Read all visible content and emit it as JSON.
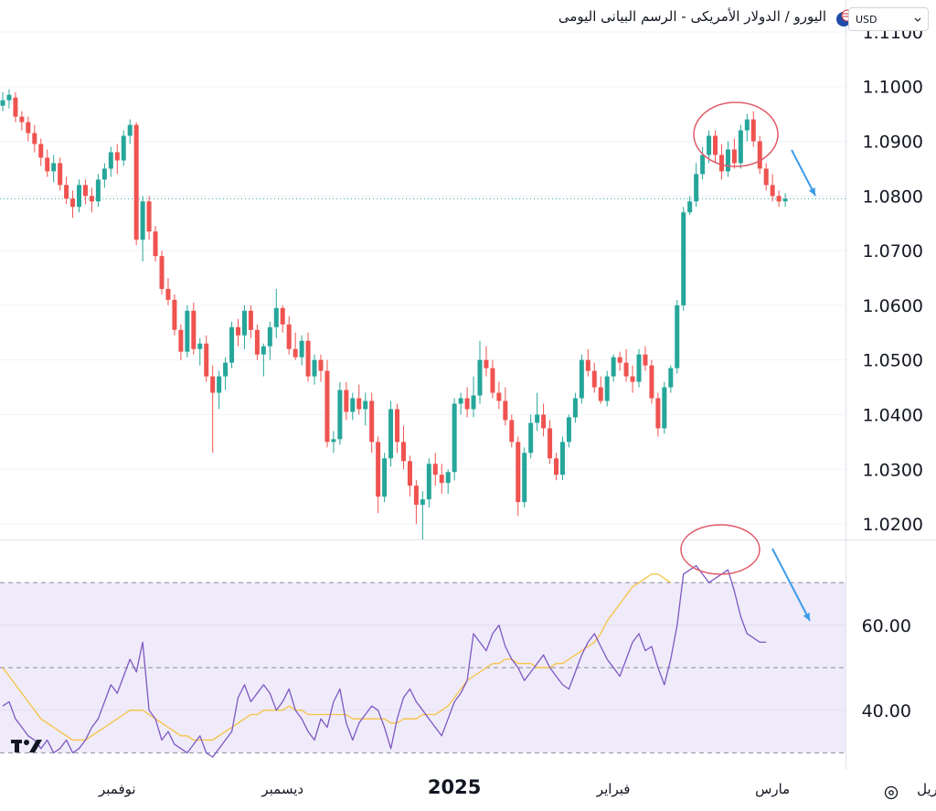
{
  "title": "اليورو / الدولار الأمريكى - الرسم البيانى اليومى",
  "currency": {
    "selected": "USD"
  },
  "icons": {
    "flag": "eur-usd-flag-icon",
    "dropdown": "chevron-down-icon",
    "logo": "tradingview-logo-icon",
    "settings": "settings-icon"
  },
  "colors": {
    "up": "#26a69a",
    "down": "#ef5350",
    "rsi": "#7e57c2",
    "rsi_ma": "#f6c343",
    "annotation": "#e05a6a",
    "arrow": "#3d9be9"
  },
  "chart_data": [
    {
      "type": "candlestick",
      "name": "EUR/USD",
      "timeframe": "daily",
      "y_ticks": [
        "1.1100",
        "1.1000",
        "1.0900",
        "1.0800",
        "1.0700",
        "1.0600",
        "1.0500",
        "1.0400",
        "1.0300",
        "1.0200"
      ],
      "ylim": [
        1.0175,
        1.1125
      ],
      "last_price": 1.0795,
      "x_ticks": [
        "نوفمبر",
        "ديسمبر",
        "2025",
        "فبراير",
        "مارس",
        "أبريل"
      ],
      "x_tick_index": [
        18,
        44,
        71,
        96,
        121,
        146
      ],
      "candles": [
        [
          1.0965,
          1.099,
          1.0955,
          1.0975
        ],
        [
          1.0975,
          1.0995,
          1.096,
          1.0985
        ],
        [
          1.098,
          1.099,
          1.0935,
          1.0945
        ],
        [
          1.0945,
          1.0955,
          1.092,
          1.0935
        ],
        [
          1.0935,
          1.0945,
          1.09,
          1.0915
        ],
        [
          1.0915,
          1.093,
          1.088,
          1.0895
        ],
        [
          1.0895,
          1.0905,
          1.0855,
          1.087
        ],
        [
          1.087,
          1.0885,
          1.0835,
          1.0845
        ],
        [
          1.0845,
          1.0875,
          1.0825,
          1.086
        ],
        [
          1.086,
          1.087,
          1.081,
          1.082
        ],
        [
          1.082,
          1.0835,
          1.0785,
          1.0795
        ],
        [
          1.0795,
          1.081,
          1.076,
          1.078
        ],
        [
          1.078,
          1.083,
          1.077,
          1.082
        ],
        [
          1.082,
          1.083,
          1.0785,
          1.08
        ],
        [
          1.08,
          1.0815,
          1.077,
          1.079
        ],
        [
          1.079,
          1.084,
          1.078,
          1.083
        ],
        [
          1.083,
          1.086,
          1.0815,
          1.085
        ],
        [
          1.085,
          1.089,
          1.0835,
          1.088
        ],
        [
          1.088,
          1.0895,
          1.084,
          1.0865
        ],
        [
          1.0865,
          1.092,
          1.0855,
          1.091
        ],
        [
          1.091,
          1.094,
          1.0895,
          1.093
        ],
        [
          1.093,
          1.0935,
          1.071,
          1.072
        ],
        [
          1.072,
          1.08,
          1.068,
          1.079
        ],
        [
          1.079,
          1.08,
          1.072,
          1.0735
        ],
        [
          1.0735,
          1.0745,
          1.068,
          1.069
        ],
        [
          1.069,
          1.07,
          1.062,
          1.063
        ],
        [
          1.063,
          1.065,
          1.06,
          1.061
        ],
        [
          1.061,
          1.062,
          1.0545,
          1.0555
        ],
        [
          1.0555,
          1.0565,
          1.05,
          1.0515
        ],
        [
          1.0515,
          1.06,
          1.0505,
          1.059
        ],
        [
          1.059,
          1.0605,
          1.051,
          1.052
        ],
        [
          1.052,
          1.054,
          1.049,
          1.053
        ],
        [
          1.053,
          1.0545,
          1.046,
          1.047
        ],
        [
          1.047,
          1.049,
          1.033,
          1.044
        ],
        [
          1.044,
          1.048,
          1.041,
          1.047
        ],
        [
          1.047,
          1.0505,
          1.0445,
          1.0495
        ],
        [
          1.0495,
          1.057,
          1.0485,
          1.056
        ],
        [
          1.056,
          1.0575,
          1.0525,
          1.0545
        ],
        [
          1.0545,
          1.06,
          1.052,
          1.059
        ],
        [
          1.059,
          1.06,
          1.054,
          1.0555
        ],
        [
          1.0555,
          1.0565,
          1.05,
          1.051
        ],
        [
          1.051,
          1.053,
          1.047,
          1.0525
        ],
        [
          1.0525,
          1.057,
          1.05,
          1.056
        ],
        [
          1.056,
          1.063,
          1.054,
          1.0595
        ],
        [
          1.0595,
          1.06,
          1.055,
          1.0565
        ],
        [
          1.0565,
          1.058,
          1.051,
          1.052
        ],
        [
          1.052,
          1.055,
          1.05,
          1.0505
        ],
        [
          1.0505,
          1.0545,
          1.049,
          1.0535
        ],
        [
          1.0535,
          1.055,
          1.046,
          1.047
        ],
        [
          1.047,
          1.051,
          1.0455,
          1.05
        ],
        [
          1.05,
          1.051,
          1.046,
          1.048
        ],
        [
          1.048,
          1.05,
          1.034,
          1.035
        ],
        [
          1.035,
          1.037,
          1.033,
          1.0355
        ],
        [
          1.0355,
          1.046,
          1.0345,
          1.0445
        ],
        [
          1.0445,
          1.046,
          1.039,
          1.0405
        ],
        [
          1.0405,
          1.044,
          1.039,
          1.043
        ],
        [
          1.043,
          1.0455,
          1.04,
          1.041
        ],
        [
          1.041,
          1.044,
          1.038,
          1.0425
        ],
        [
          1.0425,
          1.044,
          1.033,
          1.035
        ],
        [
          1.035,
          1.036,
          1.022,
          1.025
        ],
        [
          1.025,
          1.033,
          1.024,
          1.032
        ],
        [
          1.032,
          1.0425,
          1.0305,
          1.041
        ],
        [
          1.041,
          1.042,
          1.033,
          1.035
        ],
        [
          1.035,
          1.038,
          1.03,
          1.0315
        ],
        [
          1.0315,
          1.0325,
          1.025,
          1.027
        ],
        [
          1.027,
          1.028,
          1.02,
          1.0235
        ],
        [
          1.0235,
          1.026,
          1.017,
          1.0245
        ],
        [
          1.0245,
          1.032,
          1.023,
          1.031
        ],
        [
          1.031,
          1.033,
          1.027,
          1.029
        ],
        [
          1.029,
          1.031,
          1.0255,
          1.0275
        ],
        [
          1.0275,
          1.03,
          1.0255,
          1.0295
        ],
        [
          1.0295,
          1.043,
          1.028,
          1.042
        ],
        [
          1.042,
          1.044,
          1.04,
          1.043
        ],
        [
          1.043,
          1.045,
          1.0395,
          1.041
        ],
        [
          1.041,
          1.047,
          1.0395,
          1.0435
        ],
        [
          1.0435,
          1.0535,
          1.042,
          1.05
        ],
        [
          1.05,
          1.0525,
          1.047,
          1.0485
        ],
        [
          1.0485,
          1.05,
          1.043,
          1.044
        ],
        [
          1.044,
          1.046,
          1.041,
          1.0425
        ],
        [
          1.0425,
          1.045,
          1.038,
          1.039
        ],
        [
          1.039,
          1.04,
          1.034,
          1.035
        ],
        [
          1.035,
          1.036,
          1.0215,
          1.024
        ],
        [
          1.024,
          1.034,
          1.023,
          1.033
        ],
        [
          1.033,
          1.04,
          1.032,
          1.0385
        ],
        [
          1.0385,
          1.044,
          1.037,
          1.04
        ],
        [
          1.04,
          1.042,
          1.036,
          1.0375
        ],
        [
          1.0375,
          1.039,
          1.031,
          1.032
        ],
        [
          1.032,
          1.033,
          1.028,
          1.029
        ],
        [
          1.029,
          1.036,
          1.028,
          1.035
        ],
        [
          1.035,
          1.04,
          1.034,
          1.0395
        ],
        [
          1.0395,
          1.044,
          1.0385,
          1.043
        ],
        [
          1.043,
          1.051,
          1.042,
          1.05
        ],
        [
          1.05,
          1.052,
          1.047,
          1.048
        ],
        [
          1.048,
          1.0495,
          1.044,
          1.045
        ],
        [
          1.045,
          1.047,
          1.042,
          1.0425
        ],
        [
          1.0425,
          1.048,
          1.0415,
          1.047
        ],
        [
          1.047,
          1.051,
          1.046,
          1.0505
        ],
        [
          1.0505,
          1.0515,
          1.048,
          1.0495
        ],
        [
          1.0495,
          1.052,
          1.046,
          1.047
        ],
        [
          1.047,
          1.049,
          1.044,
          1.046
        ],
        [
          1.046,
          1.052,
          1.045,
          1.051
        ],
        [
          1.051,
          1.0525,
          1.048,
          1.049
        ],
        [
          1.049,
          1.05,
          1.042,
          1.043
        ],
        [
          1.043,
          1.044,
          1.036,
          1.0375
        ],
        [
          1.0375,
          1.046,
          1.0365,
          1.045
        ],
        [
          1.045,
          1.049,
          1.044,
          1.0485
        ],
        [
          1.0485,
          1.061,
          1.0475,
          1.06
        ],
        [
          1.06,
          1.078,
          1.059,
          1.077
        ],
        [
          1.077,
          1.08,
          1.0765,
          1.079
        ],
        [
          1.079,
          1.086,
          1.078,
          1.084
        ],
        [
          1.084,
          1.089,
          1.083,
          1.0875
        ],
        [
          1.0875,
          1.092,
          1.086,
          1.091
        ],
        [
          1.091,
          1.092,
          1.086,
          1.0875
        ],
        [
          1.0875,
          1.0895,
          1.083,
          1.0845
        ],
        [
          1.0845,
          1.09,
          1.0835,
          1.0885
        ],
        [
          1.0885,
          1.0905,
          1.085,
          1.086
        ],
        [
          1.086,
          1.093,
          1.085,
          1.092
        ],
        [
          1.092,
          1.095,
          1.09,
          1.094
        ],
        [
          1.094,
          1.0955,
          1.089,
          1.09
        ],
        [
          1.09,
          1.091,
          1.084,
          1.085
        ],
        [
          1.085,
          1.086,
          1.081,
          1.082
        ],
        [
          1.082,
          1.084,
          1.079,
          1.08
        ],
        [
          1.08,
          1.081,
          1.078,
          1.079
        ],
        [
          1.079,
          1.0805,
          1.078,
          1.0795
        ]
      ]
    },
    {
      "type": "line",
      "name": "RSI",
      "y_ticks": [
        "60.00",
        "40.00"
      ],
      "ylim": [
        26,
        78
      ],
      "levels": [
        70,
        50,
        30
      ],
      "series": [
        {
          "name": "",
          "values": [
            41,
            42,
            38,
            36,
            34,
            33,
            31,
            33,
            30,
            31,
            33,
            30,
            31,
            33,
            36,
            38,
            42,
            46,
            44,
            48,
            52,
            49,
            56,
            40,
            38,
            33,
            35,
            32,
            31,
            30,
            32,
            34,
            30,
            29,
            31,
            33,
            35,
            43,
            46,
            42,
            44,
            46,
            44,
            40,
            42,
            45,
            40,
            38,
            35,
            33,
            38,
            36,
            42,
            45,
            37,
            33,
            37,
            39,
            41,
            40,
            36,
            31,
            38,
            43,
            45,
            42,
            40,
            38,
            36,
            34,
            38,
            42,
            44,
            47,
            58,
            56,
            54,
            58,
            60,
            55,
            52,
            50,
            47,
            49,
            51,
            53,
            50,
            48,
            46,
            45,
            49,
            53,
            56,
            58,
            55,
            52,
            50,
            48,
            52,
            56,
            58,
            54,
            55,
            50,
            46,
            52,
            60,
            72,
            73,
            74,
            72,
            70,
            71,
            72,
            73,
            68,
            62,
            58,
            57,
            56,
            56
          ]
        },
        {
          "name": "",
          "values": [
            50,
            48,
            46,
            44,
            42,
            40,
            38,
            37,
            36,
            35,
            34,
            33,
            33,
            33,
            34,
            35,
            36,
            37,
            38,
            39,
            40,
            40,
            40,
            39,
            38,
            37,
            36,
            35,
            34,
            34,
            33,
            33,
            33,
            33,
            34,
            35,
            36,
            37,
            38,
            39,
            39,
            40,
            40,
            40,
            40,
            41,
            40,
            40,
            39,
            39,
            39,
            39,
            39,
            39,
            39,
            38,
            38,
            38,
            38,
            38,
            38,
            37,
            37,
            38,
            38,
            38,
            39,
            39,
            39,
            40,
            41,
            43,
            45,
            47,
            48,
            49,
            50,
            51,
            51,
            52,
            52,
            51,
            51,
            51,
            50,
            50,
            50,
            51,
            51,
            52,
            53,
            54,
            55,
            56,
            58,
            61,
            63,
            65,
            67,
            69,
            70,
            71,
            72,
            72,
            71,
            70
          ]
        }
      ]
    }
  ]
}
